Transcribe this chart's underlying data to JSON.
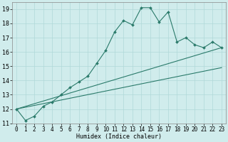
{
  "xlabel": "Humidex (Indice chaleur)",
  "background_color": "#d0ecec",
  "grid_color": "#b0d8d8",
  "line_color": "#2a7a6a",
  "xlim": [
    -0.5,
    23.5
  ],
  "ylim": [
    11,
    19.5
  ],
  "yticks": [
    11,
    12,
    13,
    14,
    15,
    16,
    17,
    18,
    19
  ],
  "xticks": [
    0,
    1,
    2,
    3,
    4,
    5,
    6,
    7,
    8,
    9,
    10,
    11,
    12,
    13,
    14,
    15,
    16,
    17,
    18,
    19,
    20,
    21,
    22,
    23
  ],
  "series1_x": [
    0,
    1,
    2,
    3,
    4,
    5,
    6,
    7,
    8,
    9,
    10,
    11,
    12,
    13,
    14,
    15,
    16,
    17,
    18,
    19,
    20,
    21,
    22,
    23
  ],
  "series1_y": [
    12.0,
    11.2,
    11.5,
    12.2,
    12.5,
    13.0,
    13.5,
    13.9,
    14.3,
    15.2,
    16.1,
    17.4,
    18.2,
    17.9,
    19.1,
    19.1,
    18.1,
    18.8,
    16.7,
    17.0,
    16.5,
    16.3,
    16.7,
    16.3
  ],
  "series2_x": [
    0,
    23
  ],
  "series2_y": [
    12.0,
    16.3
  ],
  "series3_x": [
    0,
    23
  ],
  "series3_y": [
    12.0,
    14.9
  ],
  "xlabel_fontsize": 6,
  "tick_fontsize": 5.5
}
